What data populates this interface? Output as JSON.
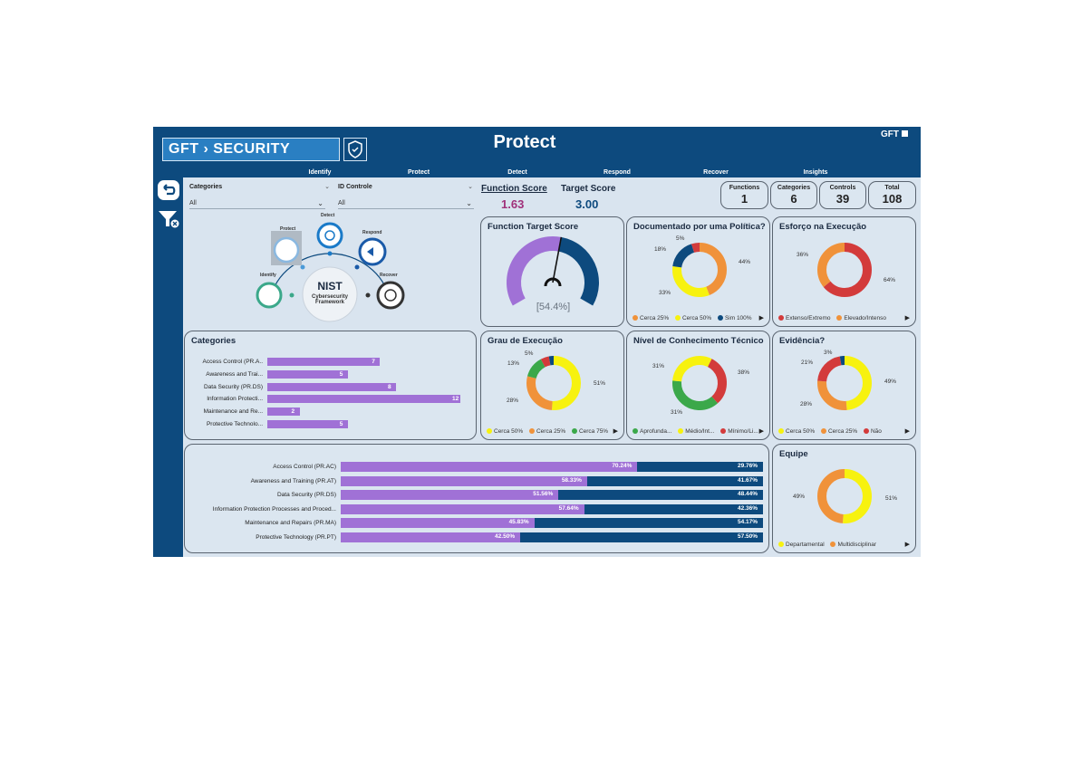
{
  "header": {
    "logo_text": "GFT › SECURITY",
    "page_title": "Protect",
    "corner_brand": "GFT",
    "tabs": [
      {
        "label": "Identify"
      },
      {
        "label": "Protect"
      },
      {
        "label": "Detect"
      },
      {
        "label": "Respond"
      },
      {
        "label": "Recover"
      },
      {
        "label": "Insights"
      }
    ]
  },
  "sidebar": {
    "icons": [
      "back-icon",
      "clear-filters-icon"
    ]
  },
  "filters": {
    "categories": {
      "label": "Categories",
      "value": "All"
    },
    "id_controle": {
      "label": "ID Controle",
      "value": "All"
    }
  },
  "nist": {
    "title": "NIST",
    "subtitle1": "Cybersecurity",
    "subtitle2": "Framework",
    "nodes": {
      "identify": "Identify",
      "protect": "Protect",
      "detect": "Detect",
      "respond": "Respond",
      "recover": "Recover"
    }
  },
  "scores": {
    "function_score_label": "Function Score",
    "function_score_value": "1.63",
    "target_score_label": "Target Score",
    "target_score_value": "3.00"
  },
  "kpis": {
    "functions": {
      "label": "Functions",
      "value": "1"
    },
    "categories": {
      "label": "Categories",
      "value": "6"
    },
    "controls": {
      "label": "Controls",
      "value": "39"
    },
    "total": {
      "label": "Total",
      "value": "108"
    }
  },
  "colors": {
    "navy": "#0d4a7e",
    "purple": "#a071d6",
    "orange": "#f0923a",
    "yellow": "#f7f20f",
    "green": "#3ba84a",
    "red": "#d33b3b",
    "dark_blue": "#0d4a7e"
  },
  "gauge": {
    "title": "Function Target Score",
    "label": "[54.4%]",
    "fraction": 0.544
  },
  "donuts": {
    "documentado": {
      "title": "Documentado por uma Política?",
      "slices": [
        {
          "name": "Cerca 25%",
          "value": 44,
          "color": "#f0923a"
        },
        {
          "name": "Cerca 50%",
          "value": 33,
          "color": "#f7f20f"
        },
        {
          "name": "Sim  100%",
          "value": 18,
          "color": "#0d4a7e"
        },
        {
          "name": "",
          "value": 5,
          "color": "#d33b3b"
        }
      ],
      "labels": [
        "5%",
        "18%",
        "44%",
        "33%"
      ],
      "legend": [
        "Cerca 25%",
        "Cerca 50%",
        "Sim  100%"
      ]
    },
    "esforco": {
      "title": "Esforço na Execução",
      "slices": [
        {
          "name": "Extenso/Extremo",
          "value": 64,
          "color": "#d33b3b"
        },
        {
          "name": "Elevado/Intenso",
          "value": 36,
          "color": "#f0923a"
        }
      ],
      "labels": [
        "36%",
        "64%"
      ],
      "legend": [
        "Extenso/Extremo",
        "Elevado/Intenso"
      ]
    },
    "grau": {
      "title": "Grau de Execução",
      "slices": [
        {
          "name": "Cerca 50%",
          "value": 51,
          "color": "#f7f20f"
        },
        {
          "name": "Cerca 25%",
          "value": 28,
          "color": "#f0923a"
        },
        {
          "name": "Cerca 75%",
          "value": 13,
          "color": "#3ba84a"
        },
        {
          "name": "",
          "value": 5,
          "color": "#d33b3b"
        },
        {
          "name": "",
          "value": 3,
          "color": "#0d4a7e"
        }
      ],
      "labels": [
        "5%",
        "13%",
        "51%",
        "28%"
      ],
      "legend": [
        "Cerca 50%",
        "Cerca 25%",
        "Cerca 75%"
      ]
    },
    "nivel": {
      "title": "Nível de Conhecimento Técnico",
      "slices": [
        {
          "name": "Aprofunda...",
          "value": 38,
          "color": "#3ba84a"
        },
        {
          "name": "Médio/Int...",
          "value": 31,
          "color": "#f7f20f"
        },
        {
          "name": "Mínimo/Li...",
          "value": 31,
          "color": "#d33b3b"
        }
      ],
      "labels": [
        "31%",
        "38%",
        "31%"
      ],
      "legend": [
        "Aprofunda...",
        "Médio/Int...",
        "Mínimo/Li..."
      ]
    },
    "evidencia": {
      "title": "Evidência?",
      "slices": [
        {
          "name": "Cerca 50%",
          "value": 49,
          "color": "#f7f20f"
        },
        {
          "name": "Cerca 25%",
          "value": 28,
          "color": "#f0923a"
        },
        {
          "name": "Não",
          "value": 21,
          "color": "#d33b3b"
        },
        {
          "name": "",
          "value": 3,
          "color": "#0d4a7e"
        }
      ],
      "labels": [
        "3%",
        "21%",
        "49%",
        "28%"
      ],
      "legend": [
        "Cerca 50%",
        "Cerca 25%",
        "Não"
      ]
    },
    "equipe": {
      "title": "Equipe",
      "slices": [
        {
          "name": "Departamental",
          "value": 51,
          "color": "#f7f20f"
        },
        {
          "name": "Multidisciplinar",
          "value": 49,
          "color": "#f0923a"
        }
      ],
      "labels": [
        "49%",
        "51%"
      ],
      "legend": [
        "Departamental",
        "Multidisciplinar"
      ]
    }
  },
  "categories_chart": {
    "title": "Categories",
    "rows": [
      {
        "label": "Access Control (PR.A..",
        "value": 7
      },
      {
        "label": "Awareness and Trai...",
        "value": 5
      },
      {
        "label": "Data Security (PR.DS)",
        "value": 8
      },
      {
        "label": "Information Protecti...",
        "value": 12
      },
      {
        "label": "Maintenance and Re...",
        "value": 2
      },
      {
        "label": "Protective Technolo...",
        "value": 5
      }
    ],
    "max": 12
  },
  "stacked_chart": {
    "rows": [
      {
        "label": "Access Control (PR.AC)",
        "a": 70.24,
        "a_label": "70.24%",
        "b_label": "29.76%"
      },
      {
        "label": "Awareness and Training (PR.AT)",
        "a": 58.33,
        "a_label": "58.33%",
        "b_label": "41.67%"
      },
      {
        "label": "Data Security (PR.DS)",
        "a": 51.56,
        "a_label": "51.56%",
        "b_label": "48.44%"
      },
      {
        "label": "Information Protection Processes and Proced...",
        "a": 57.64,
        "a_label": "57.64%",
        "b_label": "42.36%"
      },
      {
        "label": "Maintenance and Repairs (PR.MA)",
        "a": 45.83,
        "a_label": "45.83%",
        "b_label": "54.17%"
      },
      {
        "label": "Protective Technology (PR.PT)",
        "a": 42.5,
        "a_label": "42.50%",
        "b_label": "57.50%"
      }
    ]
  }
}
